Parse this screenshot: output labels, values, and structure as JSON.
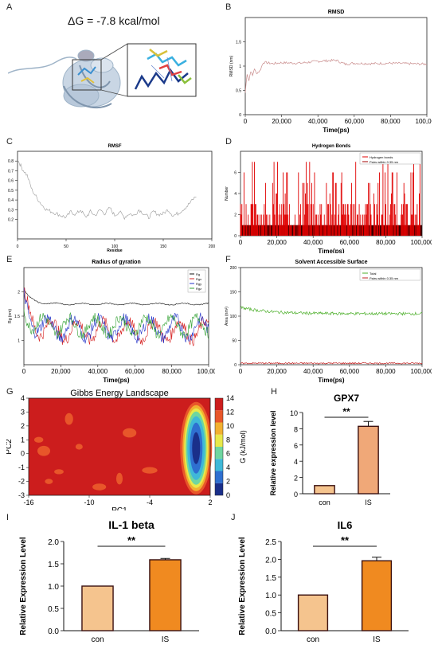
{
  "panel_labels": {
    "A": "A",
    "B": "B",
    "C": "C",
    "D": "D",
    "E": "E",
    "F": "F",
    "G": "G",
    "H": "H",
    "I": "I",
    "J": "J"
  },
  "panelA": {
    "dg_text": "ΔG = -7.8 kcal/mol"
  },
  "chart_data": [
    {
      "id": "B",
      "type": "line",
      "title": "RMSD",
      "xlabel": "Time(ps)",
      "ylabel": "RMSD (nm)",
      "xlim": [
        0,
        100000
      ],
      "ylim": [
        0,
        2
      ],
      "xticks": [
        "0",
        "20,000",
        "40,000",
        "60,000",
        "80,000",
        "100,000"
      ],
      "yticks": [
        "0",
        "0.5",
        "1",
        "1.5"
      ],
      "series": [
        {
          "color": "#c98c8c",
          "x": [
            0,
            1000,
            2000,
            3000,
            4000,
            5000,
            6000,
            8000,
            10000,
            15000,
            20000,
            30000,
            40000,
            50000,
            55000,
            60000,
            70000,
            80000,
            90000,
            100000
          ],
          "y": [
            0.45,
            0.85,
            0.7,
            0.9,
            0.8,
            0.95,
            0.85,
            0.9,
            1.08,
            1.05,
            1.07,
            1.06,
            1.1,
            1.12,
            1.04,
            1.06,
            1.05,
            1.06,
            1.05,
            1.04
          ]
        }
      ]
    },
    {
      "id": "C",
      "type": "line",
      "title": "RMSF",
      "xlabel": "Residue",
      "ylabel": "(nm)",
      "xlim": [
        0,
        200
      ],
      "ylim": [
        0,
        0.9
      ],
      "xticks": [
        "0",
        "50",
        "100",
        "150",
        "200"
      ],
      "yticks": [
        "0.2",
        "0.3",
        "0.4",
        "0.5",
        "0.6",
        "0.7",
        "0.8"
      ],
      "series": [
        {
          "color": "#999999",
          "x": [
            1,
            5,
            10,
            15,
            20,
            25,
            30,
            35,
            40,
            45,
            50,
            55,
            60,
            65,
            70,
            75,
            80,
            85,
            90,
            95,
            100,
            105,
            110,
            115,
            120,
            125,
            130,
            135,
            140,
            145,
            150,
            155,
            160,
            165,
            170,
            175,
            180,
            185
          ],
          "y": [
            0.8,
            0.72,
            0.65,
            0.5,
            0.42,
            0.35,
            0.3,
            0.28,
            0.26,
            0.24,
            0.22,
            0.28,
            0.25,
            0.3,
            0.22,
            0.28,
            0.24,
            0.3,
            0.26,
            0.32,
            0.24,
            0.28,
            0.22,
            0.26,
            0.24,
            0.3,
            0.26,
            0.22,
            0.28,
            0.25,
            0.26,
            0.3,
            0.24,
            0.26,
            0.3,
            0.34,
            0.4,
            0.45
          ]
        }
      ]
    },
    {
      "id": "D",
      "type": "bar",
      "title": "Hydrogen Bonds",
      "xlabel": "Time(ps)",
      "ylabel": "Number",
      "xlim": [
        0,
        100000
      ],
      "ylim": [
        0,
        8
      ],
      "xticks": [
        "0",
        "20,000",
        "40,000",
        "60,000",
        "80,000",
        "100,000"
      ],
      "yticks": [
        "0",
        "2",
        "4",
        "6"
      ],
      "legend": [
        "Hydrogen bonds",
        "Pairs within 0.35 nm"
      ],
      "legend_colors": [
        "#e00000",
        "#a00000"
      ],
      "pattern_levels": [
        0,
        1,
        2,
        3,
        4,
        5,
        6,
        7
      ],
      "band_levels": [
        1,
        2,
        3
      ]
    },
    {
      "id": "E",
      "type": "line",
      "title": "Radius of gyration",
      "xlabel": "Time(ps)",
      "ylabel": "Rg (nm)",
      "xlim": [
        0,
        100000
      ],
      "ylim": [
        0.5,
        2.5
      ],
      "xticks": [
        "0",
        "20,000",
        "40,000",
        "60,000",
        "80,000",
        "100,000"
      ],
      "yticks": [
        "1",
        "1.5",
        "2"
      ],
      "legend": [
        "Rg",
        "Rgx",
        "Rgy",
        "Rgz"
      ],
      "series": [
        {
          "name": "Rg",
          "color": "#111111",
          "base": 1.75,
          "start": 2.05,
          "amp": 0.02
        },
        {
          "name": "Rgx",
          "color": "#d62020",
          "base": 1.2,
          "start": 1.9,
          "amp": 0.25
        },
        {
          "name": "Rgy",
          "color": "#2030c8",
          "base": 1.25,
          "start": 1.8,
          "amp": 0.25
        },
        {
          "name": "Rgz",
          "color": "#30a030",
          "base": 1.3,
          "start": 1.6,
          "amp": 0.22
        }
      ]
    },
    {
      "id": "F",
      "type": "line",
      "title": "Solvent Accessible Surface",
      "xlabel": "Time(ps)",
      "ylabel": "Area (nm²)",
      "xlim": [
        0,
        100000
      ],
      "ylim": [
        0,
        200
      ],
      "xticks": [
        "0",
        "20,000",
        "40,000",
        "60,000",
        "80,000",
        "100,000"
      ],
      "yticks": [
        "0",
        "50",
        "100",
        "150",
        "200"
      ],
      "legend": [
        "Total",
        "Pairs within 0.35 nm"
      ],
      "series": [
        {
          "name": "Total",
          "color": "#4caf2a",
          "base": 105,
          "start": 118,
          "amp": 3
        },
        {
          "name": "Pairs within 0.35 nm",
          "color": "#c02020",
          "base": 3,
          "start": 3,
          "amp": 1.5
        }
      ]
    },
    {
      "id": "G",
      "type": "heatmap",
      "title": "Gibbs Energy Landscape",
      "xlabel": "PC1",
      "ylabel": "PC2",
      "xlim": [
        -16,
        2
      ],
      "ylim": [
        -3,
        4
      ],
      "xticks": [
        "-16",
        "-10",
        "-4",
        "2"
      ],
      "yticks": [
        "-3",
        "-2",
        "-1",
        "0",
        "1",
        "2",
        "3",
        "4"
      ],
      "colorbar_label": "G (kJ/mol)",
      "colorbar_ticks": [
        "0",
        "2",
        "4",
        "6",
        "8",
        "10",
        "12",
        "14"
      ],
      "colorbar_colors": [
        "#1a2f8a",
        "#2e6fd0",
        "#3fb8d8",
        "#6fd6a0",
        "#e8e84a",
        "#f2b030",
        "#e8562a",
        "#cc1d1d"
      ]
    },
    {
      "id": "H",
      "type": "bar",
      "title": "GPX7",
      "ylabel": "Relative expression level",
      "categories": [
        "con",
        "IS"
      ],
      "values": [
        1.0,
        8.3
      ],
      "errors": [
        0,
        0.6
      ],
      "ylim": [
        0,
        10
      ],
      "yticks": [
        "0",
        "2",
        "4",
        "6",
        "8",
        "10"
      ],
      "significance": "**",
      "colors": [
        "#f5c48e",
        "#f0a878"
      ]
    },
    {
      "id": "I",
      "type": "bar",
      "title": "IL-1 beta",
      "ylabel": "Relative Expression Level",
      "categories": [
        "con",
        "IS"
      ],
      "values": [
        1.0,
        1.59
      ],
      "errors": [
        0,
        0.03
      ],
      "ylim": [
        0,
        2
      ],
      "yticks": [
        "0.0",
        "0.5",
        "1.0",
        "1.5",
        "2.0"
      ],
      "significance": "**",
      "colors": [
        "#f5c48e",
        "#f08a20"
      ]
    },
    {
      "id": "J",
      "type": "bar",
      "title": "IL6",
      "ylabel": "Relative Expression Level",
      "categories": [
        "con",
        "IS"
      ],
      "values": [
        1.0,
        1.96
      ],
      "errors": [
        0,
        0.1
      ],
      "ylim": [
        0,
        2.5
      ],
      "yticks": [
        "0.0",
        "0.5",
        "1.0",
        "1.5",
        "2.0",
        "2.5"
      ],
      "significance": "**",
      "colors": [
        "#f5c48e",
        "#f08a20"
      ]
    }
  ]
}
